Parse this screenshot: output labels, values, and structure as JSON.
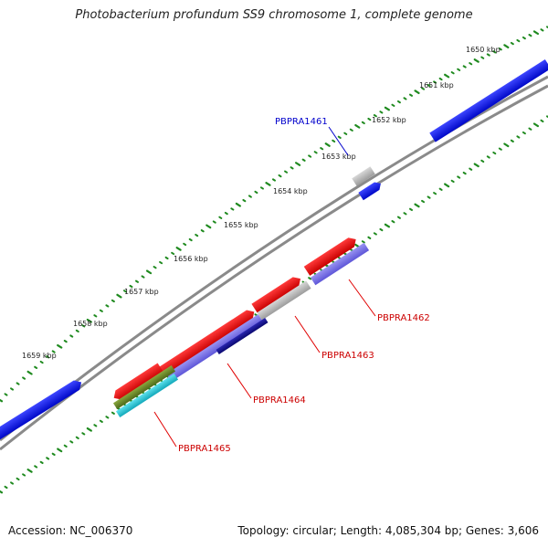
{
  "title": "Photobacterium profundum SS9 chromosome 1, complete genome",
  "footer": {
    "accession": "Accession: NC_006370",
    "summary": "Topology: circular; Length: 4,085,304 bp; Genes: 3,606"
  },
  "colors": {
    "backbone": "#777777",
    "tick_dots": "#1f8a1f",
    "label_line": "#e00000",
    "label_red": "#cc0000",
    "label_blue": "#0000cc",
    "gene_blue": "#0a12e6",
    "gene_red": "#e60000",
    "gene_grey": "#b8b8b8",
    "gene_lavender": "#7b74e8",
    "gene_navy": "#131090",
    "gene_olive": "#6c8a2a",
    "gene_cyan": "#25c6d6"
  },
  "ticks": [
    {
      "label": "1650 kbp"
    },
    {
      "label": "1651 kbp"
    },
    {
      "label": "1652 kbp"
    },
    {
      "label": "1653 kbp"
    },
    {
      "label": "1654 kbp"
    },
    {
      "label": "1655 kbp"
    },
    {
      "label": "1656 kbp"
    },
    {
      "label": "1657 kbp"
    },
    {
      "label": "1658 kbp"
    },
    {
      "label": "1659 kbp"
    }
  ],
  "gene_labels": [
    {
      "text": "PBPRA1461",
      "color": "blue"
    },
    {
      "text": "PBPRA1462",
      "color": "red"
    },
    {
      "text": "PBPRA1463",
      "color": "red"
    },
    {
      "text": "PBPRA1464",
      "color": "red"
    },
    {
      "text": "PBPRA1465",
      "color": "red"
    }
  ]
}
